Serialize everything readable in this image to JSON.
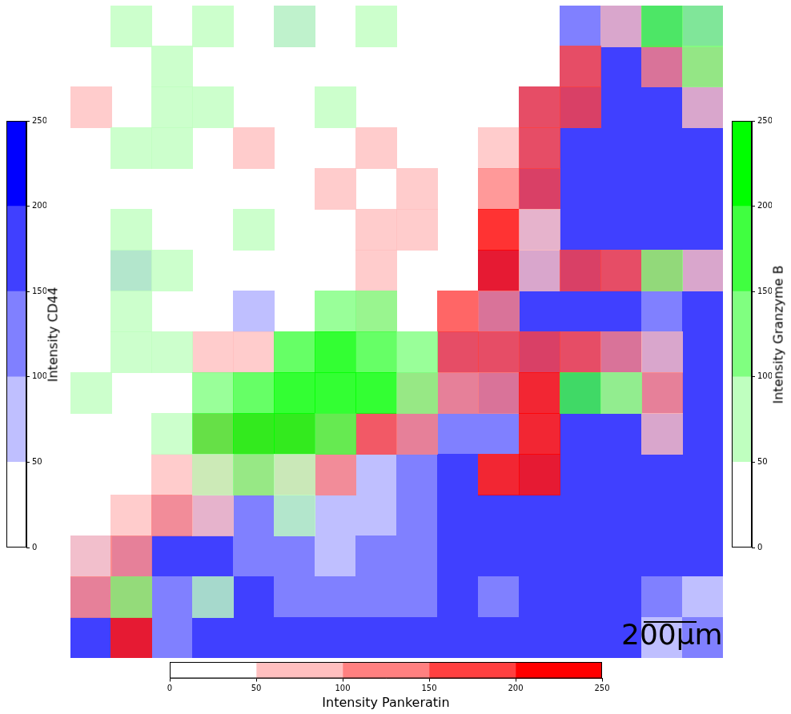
{
  "chart_data": {
    "type": "contour",
    "tick_labels": false,
    "annotations": [
      "200μm"
    ],
    "channels": [
      {
        "name": "Intensity CD44",
        "color": "#0000ff",
        "levels": [
          0,
          50,
          100,
          150,
          200,
          250
        ],
        "colors": [
          "#ffffff",
          "#bfbfff",
          "#8080ff",
          "#4040ff",
          "#0000ff"
        ],
        "zlim": [
          0,
          250
        ],
        "zticks": [
          0,
          50,
          100,
          150,
          200,
          250
        ],
        "cells": [
          [
            0,
            0,
            0,
            0,
            0,
            80,
            0,
            0,
            0,
            0,
            0,
            0,
            100,
            150,
            120,
            100
          ],
          [
            0,
            0,
            0,
            0,
            0,
            0,
            0,
            0,
            0,
            0,
            0,
            0,
            120,
            150,
            150,
            120
          ],
          [
            0,
            0,
            0,
            0,
            0,
            0,
            0,
            0,
            0,
            0,
            0,
            100,
            150,
            150,
            150,
            150
          ],
          [
            0,
            0,
            0,
            0,
            0,
            0,
            0,
            0,
            0,
            0,
            0,
            120,
            150,
            150,
            150,
            150
          ],
          [
            0,
            0,
            0,
            0,
            0,
            0,
            0,
            0,
            0,
            0,
            0,
            150,
            150,
            150,
            150,
            150
          ],
          [
            0,
            0,
            0,
            0,
            0,
            0,
            0,
            0,
            0,
            0,
            0,
            100,
            150,
            150,
            150,
            150
          ],
          [
            0,
            100,
            0,
            0,
            0,
            0,
            0,
            0,
            0,
            0,
            100,
            150,
            150,
            100,
            150,
            150
          ],
          [
            0,
            0,
            0,
            0,
            60,
            0,
            0,
            0,
            0,
            0,
            150,
            150,
            150,
            150,
            100,
            150
          ],
          [
            0,
            0,
            0,
            0,
            0,
            0,
            0,
            0,
            0,
            100,
            120,
            150,
            120,
            150,
            150,
            150
          ],
          [
            0,
            0,
            0,
            0,
            0,
            0,
            0,
            0,
            80,
            120,
            150,
            80,
            150,
            150,
            120,
            150
          ],
          [
            0,
            0,
            0,
            0,
            0,
            0,
            0,
            60,
            100,
            130,
            100,
            80,
            150,
            150,
            150,
            150
          ],
          [
            0,
            0,
            0,
            0,
            60,
            60,
            80,
            80,
            100,
            150,
            80,
            120,
            150,
            150,
            150,
            150
          ],
          [
            0,
            0,
            80,
            100,
            120,
            100,
            80,
            80,
            100,
            150,
            150,
            150,
            150,
            150,
            150,
            150
          ],
          [
            80,
            100,
            150,
            150,
            120,
            100,
            80,
            100,
            120,
            150,
            150,
            150,
            150,
            150,
            150,
            150
          ],
          [
            120,
            100,
            120,
            150,
            150,
            120,
            100,
            100,
            120,
            150,
            100,
            150,
            150,
            150,
            120,
            80
          ],
          [
            150,
            100,
            120,
            150,
            150,
            150,
            150,
            150,
            150,
            150,
            150,
            150,
            150,
            150,
            80,
            120
          ]
        ]
      },
      {
        "name": "Intensity Pankeratin",
        "color": "#ff0000",
        "levels": [
          0,
          50,
          100,
          150,
          200,
          250
        ],
        "colors": [
          "#ffffff",
          "#ffbfbf",
          "#ff8080",
          "#ff4040",
          "#ff0000"
        ],
        "zlim": [
          0,
          250
        ],
        "zticks": [
          0,
          50,
          100,
          150,
          200,
          250
        ],
        "cells": [
          [
            0,
            0,
            0,
            0,
            0,
            0,
            0,
            0,
            0,
            0,
            0,
            0,
            0,
            50,
            0,
            0
          ],
          [
            0,
            0,
            0,
            0,
            0,
            0,
            0,
            0,
            0,
            0,
            0,
            0,
            150,
            0,
            100,
            100
          ],
          [
            50,
            0,
            0,
            0,
            0,
            0,
            0,
            0,
            0,
            0,
            0,
            150,
            150,
            0,
            0,
            80
          ],
          [
            0,
            0,
            0,
            0,
            60,
            0,
            0,
            60,
            0,
            0,
            60,
            150,
            0,
            0,
            0,
            0
          ],
          [
            0,
            0,
            0,
            0,
            0,
            0,
            60,
            0,
            60,
            0,
            120,
            180,
            0,
            0,
            0,
            0
          ],
          [
            0,
            0,
            0,
            0,
            0,
            0,
            0,
            70,
            60,
            0,
            200,
            60,
            0,
            0,
            0,
            0
          ],
          [
            0,
            0,
            0,
            0,
            0,
            0,
            0,
            60,
            0,
            0,
            200,
            80,
            180,
            180,
            150,
            80
          ],
          [
            0,
            0,
            0,
            0,
            0,
            0,
            0,
            80,
            0,
            150,
            120,
            0,
            0,
            0,
            0,
            0
          ],
          [
            0,
            0,
            0,
            60,
            80,
            0,
            0,
            0,
            0,
            150,
            180,
            180,
            150,
            100,
            80,
            0
          ],
          [
            0,
            0,
            0,
            0,
            0,
            0,
            0,
            0,
            120,
            120,
            100,
            220,
            0,
            80,
            100,
            0
          ],
          [
            0,
            0,
            0,
            150,
            100,
            100,
            120,
            150,
            100,
            0,
            0,
            250,
            0,
            0,
            80,
            0
          ],
          [
            0,
            0,
            80,
            120,
            120,
            100,
            100,
            0,
            0,
            0,
            200,
            250,
            0,
            0,
            0,
            0
          ],
          [
            0,
            80,
            100,
            60,
            0,
            0,
            0,
            0,
            0,
            0,
            0,
            0,
            0,
            0,
            0,
            0
          ],
          [
            50,
            100,
            0,
            0,
            0,
            0,
            0,
            0,
            0,
            0,
            0,
            0,
            0,
            0,
            0,
            0
          ],
          [
            100,
            150,
            0,
            0,
            0,
            0,
            0,
            0,
            0,
            0,
            0,
            0,
            0,
            0,
            0,
            0
          ],
          [
            0,
            220,
            0,
            0,
            0,
            0,
            0,
            0,
            0,
            0,
            0,
            0,
            0,
            0,
            0,
            0
          ]
        ]
      },
      {
        "name": "Intensity Granzyme B",
        "color": "#00ff00",
        "levels": [
          0,
          50,
          100,
          150,
          200,
          250
        ],
        "colors": [
          "#ffffff",
          "#bfffbf",
          "#80ff80",
          "#40ff40",
          "#00ff00"
        ],
        "zlim": [
          0,
          250
        ],
        "zticks": [
          0,
          50,
          100,
          150,
          200,
          250
        ],
        "cells": [
          [
            0,
            50,
            0,
            60,
            0,
            50,
            0,
            50,
            0,
            0,
            0,
            0,
            0,
            0,
            150,
            120
          ],
          [
            0,
            0,
            60,
            0,
            0,
            0,
            0,
            0,
            0,
            0,
            0,
            0,
            0,
            0,
            0,
            100
          ],
          [
            0,
            0,
            80,
            60,
            0,
            0,
            60,
            0,
            0,
            0,
            0,
            0,
            0,
            0,
            0,
            0
          ],
          [
            0,
            50,
            60,
            0,
            0,
            0,
            0,
            0,
            0,
            0,
            0,
            0,
            0,
            0,
            0,
            0
          ],
          [
            0,
            0,
            0,
            0,
            0,
            0,
            0,
            0,
            0,
            0,
            0,
            0,
            0,
            0,
            0,
            0
          ],
          [
            0,
            60,
            0,
            0,
            50,
            0,
            0,
            0,
            0,
            0,
            0,
            0,
            0,
            0,
            0,
            0
          ],
          [
            0,
            70,
            60,
            0,
            0,
            0,
            0,
            0,
            0,
            0,
            0,
            0,
            0,
            0,
            120,
            0
          ],
          [
            0,
            60,
            0,
            0,
            0,
            0,
            120,
            120,
            0,
            0,
            0,
            0,
            0,
            0,
            0,
            0
          ],
          [
            0,
            60,
            60,
            0,
            0,
            150,
            200,
            180,
            120,
            0,
            0,
            0,
            0,
            0,
            0,
            0
          ],
          [
            50,
            0,
            0,
            120,
            150,
            200,
            220,
            200,
            100,
            0,
            0,
            0,
            150,
            100,
            0,
            0
          ],
          [
            0,
            0,
            80,
            150,
            200,
            220,
            180,
            0,
            0,
            0,
            0,
            0,
            0,
            0,
            0,
            0
          ],
          [
            0,
            0,
            0,
            80,
            100,
            60,
            0,
            0,
            0,
            0,
            0,
            0,
            0,
            0,
            0,
            0
          ],
          [
            0,
            0,
            0,
            0,
            0,
            60,
            0,
            0,
            0,
            0,
            0,
            0,
            0,
            0,
            0,
            0
          ],
          [
            0,
            0,
            0,
            0,
            0,
            0,
            0,
            0,
            0,
            0,
            0,
            0,
            0,
            0,
            0,
            0
          ],
          [
            0,
            100,
            0,
            60,
            0,
            0,
            0,
            0,
            0,
            0,
            0,
            0,
            0,
            0,
            0,
            0
          ],
          [
            0,
            0,
            0,
            0,
            0,
            0,
            0,
            0,
            0,
            0,
            0,
            0,
            0,
            0,
            0,
            0
          ]
        ]
      }
    ]
  }
}
